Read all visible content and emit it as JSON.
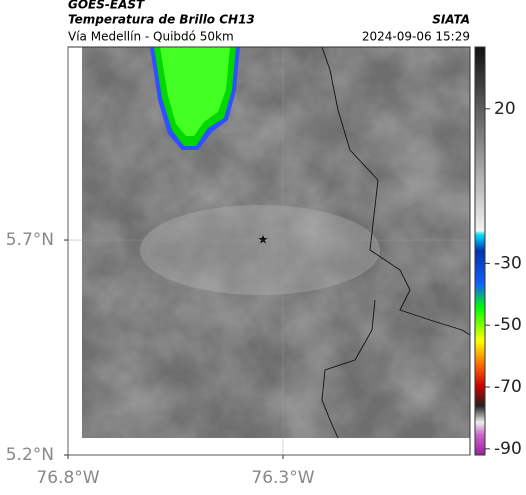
{
  "header": {
    "source": "GOES-EAST",
    "title": "Temperatura de Brillo CH13",
    "subtitle": "Vía Medellín - Quibdó 50km",
    "agency": "SIATA",
    "timestamp": "2024-09-06 15:29"
  },
  "map": {
    "xlim": [
      -76.8,
      -75.865
    ],
    "ylim": [
      5.2,
      6.149
    ],
    "xticks": [
      {
        "value": -76.8,
        "label": "76.8°W"
      },
      {
        "value": -76.3,
        "label": "76.3°W"
      }
    ],
    "yticks": [
      {
        "value": 5.7,
        "label": "5.7°N"
      },
      {
        "value": 5.2,
        "label": "5.2°N"
      }
    ]
  },
  "colorbar": {
    "lim": [
      -92,
      40
    ],
    "ticks": [
      20,
      -30,
      -50,
      -70,
      -90
    ]
  }
}
